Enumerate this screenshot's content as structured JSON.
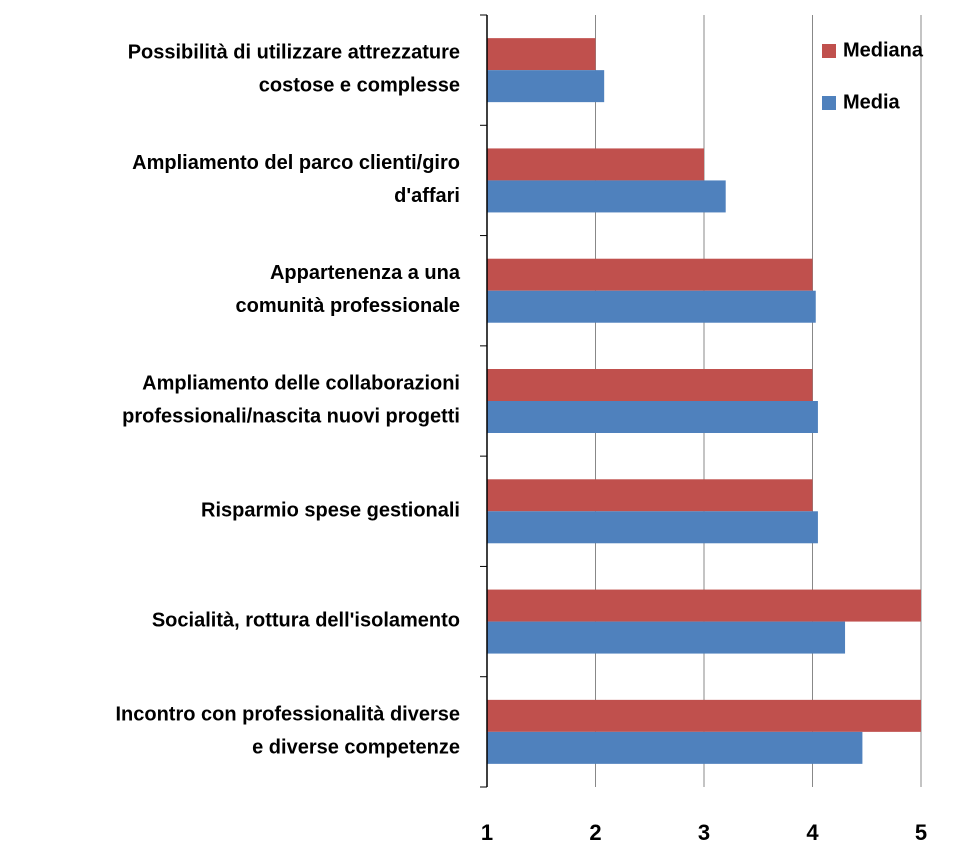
{
  "chart_data": {
    "type": "hbar",
    "categories": [
      "Possibilità  di utilizzare attrezzature\ncostose e complesse",
      "Ampliamento del parco clienti/giro\nd'affari",
      "Appartenenza a una\ncomunità  professionale",
      "Ampliamento delle collaborazioni\nprofessionali/nascita nuovi progetti",
      "Risparmio spese gestionali",
      "Socialità, rottura dell'isolamento",
      "Incontro con professionalità  diverse\ne diverse competenze"
    ],
    "series": [
      {
        "name": "Mediana",
        "color": "#c0504d",
        "values": [
          2,
          3,
          4,
          4,
          4,
          5,
          5
        ]
      },
      {
        "name": "Media",
        "color": "#4f81bd",
        "values": [
          2.08,
          3.2,
          4.03,
          4.05,
          4.05,
          4.3,
          4.46
        ]
      }
    ],
    "xlim": [
      1,
      5
    ],
    "xticks": [
      1,
      2,
      3,
      4,
      5
    ],
    "grid": true,
    "legend": "top-right"
  }
}
